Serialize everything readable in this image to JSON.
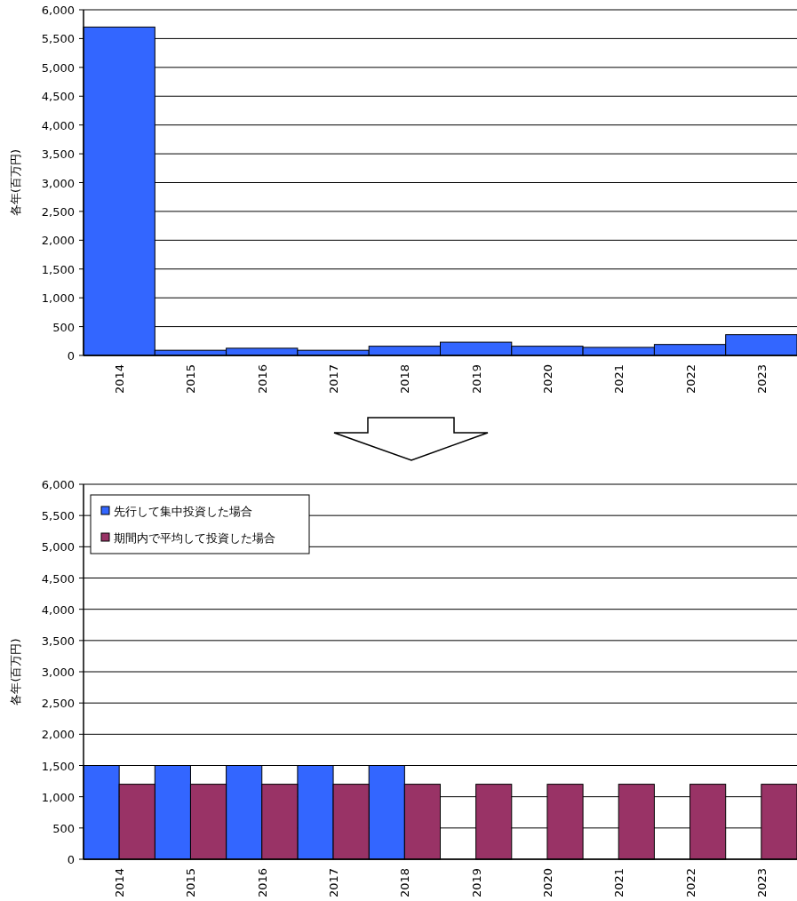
{
  "chart_data": [
    {
      "type": "bar",
      "ylabel": "各年(百万円)",
      "categories": [
        "2014",
        "2015",
        "2016",
        "2017",
        "2018",
        "2019",
        "2020",
        "2021",
        "2022",
        "2023"
      ],
      "series": [
        {
          "color": "#3366ff",
          "values": [
            5700,
            90,
            125,
            90,
            160,
            230,
            160,
            140,
            190,
            360
          ]
        }
      ],
      "ylim": [
        0,
        6000
      ],
      "yticks": [
        {
          "value": 0,
          "label": "0"
        },
        {
          "value": 500,
          "label": "500"
        },
        {
          "value": 1000,
          "label": "1,000"
        },
        {
          "value": 1500,
          "label": "1,500"
        },
        {
          "value": 2000,
          "label": "2,000"
        },
        {
          "value": 2500,
          "label": "2,500"
        },
        {
          "value": 3000,
          "label": "3,000"
        },
        {
          "value": 3500,
          "label": "3,500"
        },
        {
          "value": 4000,
          "label": "4,000"
        },
        {
          "value": 4500,
          "label": "4,500"
        },
        {
          "value": 5000,
          "label": "5,000"
        },
        {
          "value": 5500,
          "label": "5,500"
        },
        {
          "value": 6000,
          "label": "6,000"
        }
      ],
      "grid": "y",
      "legend": false
    },
    {
      "type": "bar",
      "ylabel": "各年(百万円)",
      "categories": [
        "2014",
        "2015",
        "2016",
        "2017",
        "2018",
        "2019",
        "2020",
        "2021",
        "2022",
        "2023"
      ],
      "series": [
        {
          "name": "先行して集中投資した場合",
          "color": "#3366ff",
          "values": [
            1500,
            1500,
            1500,
            1500,
            1500,
            null,
            null,
            null,
            null,
            null
          ]
        },
        {
          "name": "期間内で平均して投資した場合",
          "color": "#993366",
          "values": [
            1200,
            1200,
            1200,
            1200,
            1200,
            1200,
            1200,
            1200,
            1200,
            1200
          ]
        }
      ],
      "ylim": [
        0,
        6000
      ],
      "yticks": [
        {
          "value": 0,
          "label": "0"
        },
        {
          "value": 500,
          "label": "500"
        },
        {
          "value": 1000,
          "label": "1,000"
        },
        {
          "value": 1500,
          "label": "1,500"
        },
        {
          "value": 2000,
          "label": "2,000"
        },
        {
          "value": 2500,
          "label": "2,500"
        },
        {
          "value": 3000,
          "label": "3,000"
        },
        {
          "value": 3500,
          "label": "3,500"
        },
        {
          "value": 4000,
          "label": "4,000"
        },
        {
          "value": 4500,
          "label": "4,500"
        },
        {
          "value": 5000,
          "label": "5,000"
        },
        {
          "value": 5500,
          "label": "5,500"
        },
        {
          "value": 6000,
          "label": "6,000"
        }
      ],
      "grid": "y",
      "legend": "top left"
    }
  ]
}
